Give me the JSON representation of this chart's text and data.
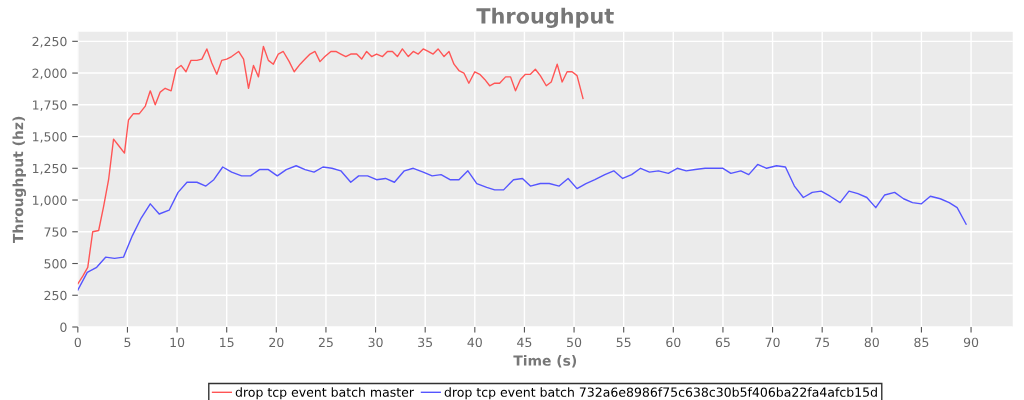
{
  "chart_data": {
    "type": "line",
    "title": "Throughput",
    "xlabel": "Time (s)",
    "ylabel": "Throughput (hz)",
    "xlim": [
      0,
      94.2
    ],
    "ylim": [
      0,
      2325
    ],
    "xticks": [
      0,
      5,
      10,
      15,
      20,
      25,
      30,
      35,
      40,
      45,
      50,
      55,
      60,
      65,
      70,
      75,
      80,
      85,
      90
    ],
    "yticks": [
      0,
      250,
      500,
      750,
      {
        "value": 1000,
        "label": "1,000"
      },
      {
        "value": 1250,
        "label": "1,250"
      },
      {
        "value": 1500,
        "label": "1,500"
      },
      {
        "value": 1750,
        "label": "1,750"
      },
      {
        "value": 2000,
        "label": "2,000"
      },
      {
        "value": 2250,
        "label": "2,250"
      }
    ],
    "grid": true,
    "legend": "bottom",
    "marker": "none",
    "line_style": "solid",
    "series": [
      {
        "name": "drop tcp event batch master",
        "color": "#ff5555",
        "x": [
          0,
          0.5,
          1.0,
          1.5,
          2.1,
          2.6,
          3.1,
          3.6,
          4.2,
          4.7,
          5.1,
          5.6,
          6.2,
          6.8,
          7.3,
          7.8,
          8.3,
          8.8,
          9.4,
          9.9,
          10.4,
          10.9,
          11.4,
          12.0,
          12.5,
          13.0,
          13.5,
          14.0,
          14.5,
          15.0,
          15.5,
          16.2,
          16.7,
          17.2,
          17.7,
          18.2,
          18.7,
          19.2,
          19.7,
          20.2,
          20.7,
          21.3,
          21.8,
          22.4,
          22.9,
          23.4,
          23.9,
          24.4,
          24.9,
          25.5,
          26.0,
          26.5,
          27.0,
          27.5,
          28.1,
          28.6,
          29.1,
          29.6,
          30.1,
          30.7,
          31.2,
          31.7,
          32.2,
          32.7,
          33.3,
          33.8,
          34.3,
          34.8,
          35.3,
          35.8,
          36.3,
          36.9,
          37.4,
          37.9,
          38.4,
          38.9,
          39.4,
          40.0,
          40.5,
          41.0,
          41.5,
          42.0,
          42.5,
          43.1,
          43.6,
          44.1,
          44.6,
          45.1,
          45.6,
          46.1,
          46.6,
          47.2,
          47.7,
          48.3,
          48.8,
          49.3,
          49.8,
          50.3,
          50.9
        ],
        "values": [
          340,
          400,
          470,
          750,
          760,
          950,
          1160,
          1480,
          1420,
          1370,
          1630,
          1680,
          1680,
          1740,
          1860,
          1750,
          1850,
          1880,
          1860,
          2030,
          2060,
          2010,
          2100,
          2100,
          2110,
          2190,
          2080,
          1990,
          2100,
          2110,
          2130,
          2170,
          2110,
          1880,
          2060,
          1970,
          2210,
          2100,
          2070,
          2150,
          2170,
          2090,
          2010,
          2070,
          2110,
          2150,
          2170,
          2090,
          2130,
          2170,
          2170,
          2150,
          2130,
          2150,
          2150,
          2110,
          2170,
          2130,
          2150,
          2130,
          2170,
          2170,
          2130,
          2190,
          2130,
          2170,
          2150,
          2190,
          2170,
          2150,
          2190,
          2130,
          2170,
          2070,
          2020,
          2000,
          1920,
          2010,
          1990,
          1950,
          1900,
          1920,
          1920,
          1970,
          1970,
          1860,
          1950,
          1990,
          1990,
          2030,
          1980,
          1900,
          1930,
          2070,
          1930,
          2010,
          2010,
          1980,
          1800
        ]
      },
      {
        "name": "drop tcp event batch 732a6e8986f75c638c30b5f406ba22fa4afcb15d",
        "color": "#5555ff",
        "x": [
          0,
          0.95,
          1.9,
          2.8,
          3.7,
          4.6,
          5.5,
          6.4,
          7.3,
          8.2,
          9.2,
          10.1,
          11.0,
          12.0,
          12.9,
          13.7,
          14.6,
          15.5,
          16.5,
          17.4,
          18.3,
          19.2,
          20.1,
          21.0,
          22.0,
          22.9,
          23.8,
          24.7,
          25.6,
          26.5,
          27.5,
          28.3,
          29.2,
          30.1,
          31.0,
          31.9,
          32.9,
          33.8,
          34.8,
          35.7,
          36.6,
          37.5,
          38.4,
          39.3,
          40.2,
          41.2,
          42.0,
          42.9,
          43.9,
          44.8,
          45.6,
          46.6,
          47.5,
          48.5,
          49.4,
          50.3,
          51.2,
          52.1,
          53.1,
          54.0,
          54.9,
          55.8,
          56.7,
          57.6,
          58.5,
          59.5,
          60.4,
          61.3,
          62.2,
          63.2,
          64.1,
          65.0,
          65.8,
          66.8,
          67.6,
          68.5,
          69.4,
          70.4,
          71.3,
          72.2,
          73.1,
          74.0,
          74.9,
          75.8,
          76.8,
          77.7,
          78.6,
          79.5,
          80.4,
          81.3,
          82.3,
          83.2,
          84.1,
          85.0,
          85.9,
          86.9,
          87.8,
          88.6,
          89.5
        ],
        "values": [
          290,
          430,
          470,
          550,
          540,
          550,
          720,
          860,
          970,
          890,
          920,
          1060,
          1140,
          1140,
          1110,
          1160,
          1260,
          1220,
          1190,
          1190,
          1240,
          1240,
          1190,
          1240,
          1270,
          1240,
          1220,
          1260,
          1250,
          1230,
          1140,
          1190,
          1190,
          1160,
          1170,
          1140,
          1230,
          1250,
          1220,
          1190,
          1200,
          1160,
          1160,
          1230,
          1130,
          1100,
          1080,
          1080,
          1160,
          1170,
          1110,
          1130,
          1130,
          1110,
          1170,
          1090,
          1130,
          1160,
          1200,
          1230,
          1170,
          1200,
          1250,
          1220,
          1230,
          1210,
          1250,
          1230,
          1240,
          1250,
          1250,
          1250,
          1210,
          1230,
          1200,
          1280,
          1250,
          1270,
          1260,
          1110,
          1020,
          1060,
          1070,
          1030,
          980,
          1070,
          1050,
          1020,
          940,
          1040,
          1060,
          1010,
          980,
          970,
          1030,
          1010,
          980,
          940,
          810
        ]
      }
    ]
  }
}
